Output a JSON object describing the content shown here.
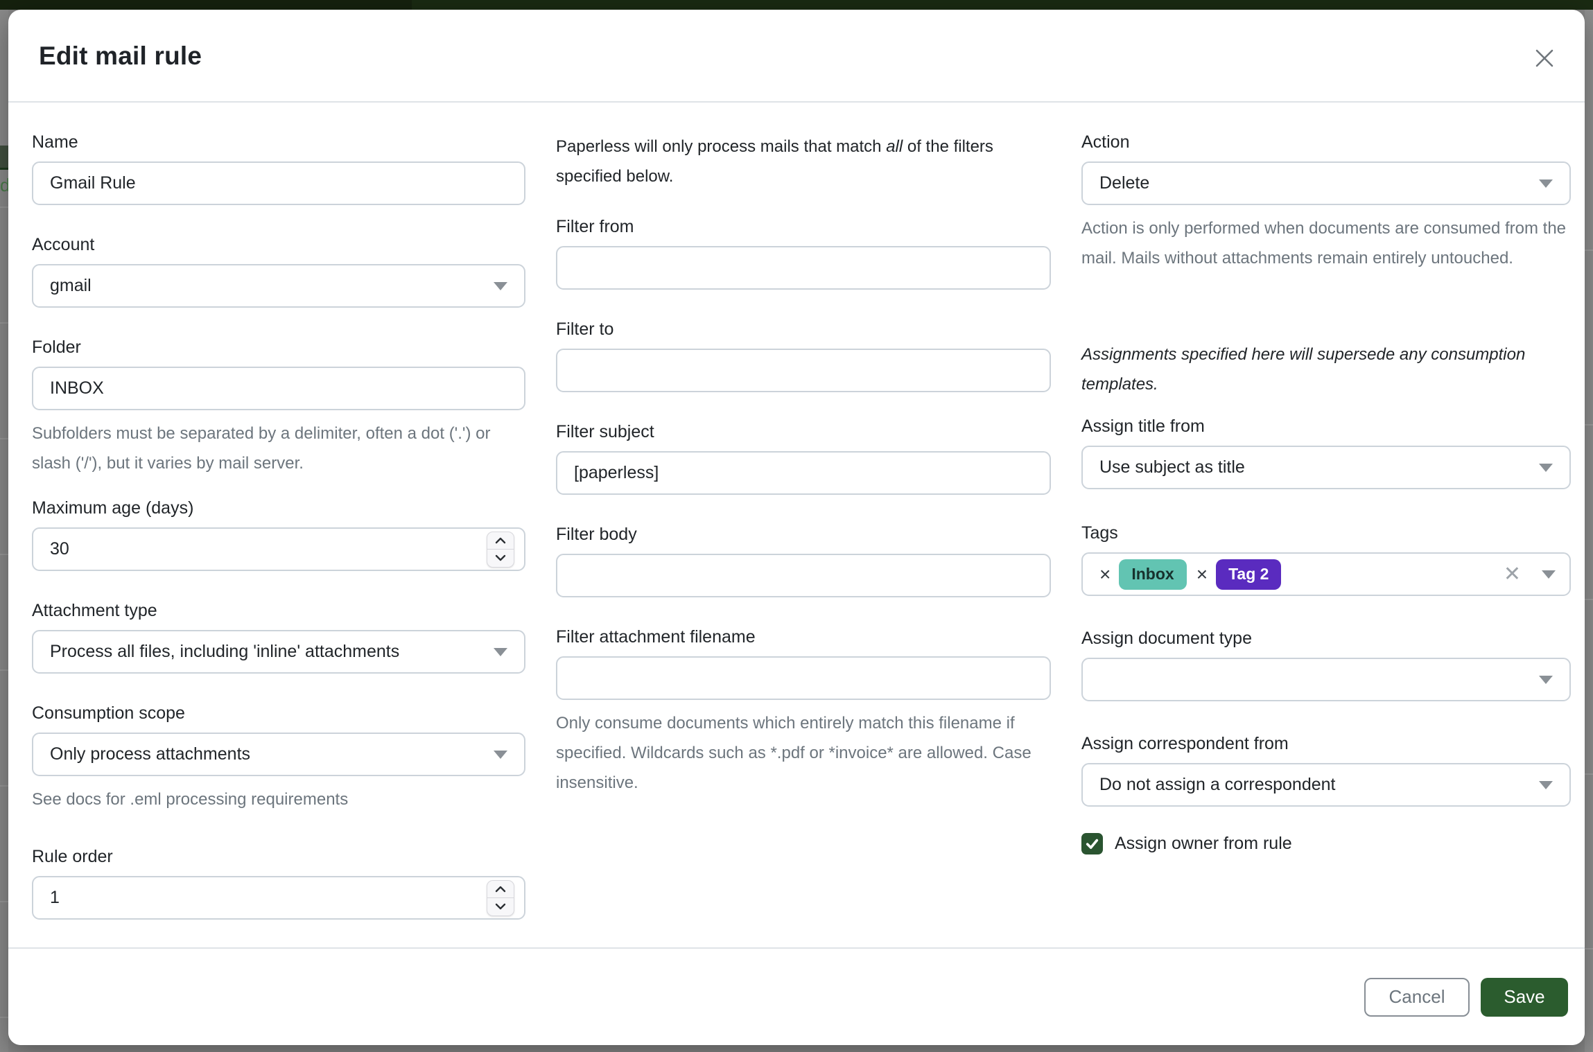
{
  "modal": {
    "title": "Edit mail rule"
  },
  "left": {
    "name": {
      "label": "Name",
      "value": "Gmail Rule"
    },
    "account": {
      "label": "Account",
      "value": "gmail"
    },
    "folder": {
      "label": "Folder",
      "value": "INBOX",
      "help": "Subfolders must be separated by a delimiter, often a dot ('.') or slash ('/'), but it varies by mail server."
    },
    "max_age": {
      "label": "Maximum age (days)",
      "value": "30"
    },
    "attachment_type": {
      "label": "Attachment type",
      "value": "Process all files, including 'inline' attachments"
    },
    "consumption_scope": {
      "label": "Consumption scope",
      "value": "Only process attachments",
      "help": "See docs for .eml processing requirements"
    },
    "rule_order": {
      "label": "Rule order",
      "value": "1"
    }
  },
  "middle": {
    "intro": {
      "before": "Paperless will only process mails that match ",
      "emphasis": "all",
      "after": " of the filters specified below."
    },
    "filter_from": {
      "label": "Filter from",
      "value": ""
    },
    "filter_to": {
      "label": "Filter to",
      "value": ""
    },
    "filter_subject": {
      "label": "Filter subject",
      "value": "[paperless]"
    },
    "filter_body": {
      "label": "Filter body",
      "value": ""
    },
    "filter_attachment_filename": {
      "label": "Filter attachment filename",
      "value": "",
      "help": "Only consume documents which entirely match this filename if specified. Wildcards such as *.pdf or *invoice* are allowed. Case insensitive."
    }
  },
  "right": {
    "action": {
      "label": "Action",
      "value": "Delete",
      "help": "Action is only performed when documents are consumed from the mail. Mails without attachments remain entirely untouched."
    },
    "assignments_note": "Assignments specified here will supersede any consumption templates.",
    "assign_title_from": {
      "label": "Assign title from",
      "value": "Use subject as title"
    },
    "tags": {
      "label": "Tags",
      "items": [
        {
          "name": "Inbox",
          "color": "#62c4b2",
          "text_color": "#17322d"
        },
        {
          "name": "Tag 2",
          "color": "#5a2bbf",
          "text_color": "#ffffff"
        }
      ],
      "remove_icon": "×",
      "clear_icon": "✕"
    },
    "assign_document_type": {
      "label": "Assign document type",
      "value": ""
    },
    "assign_correspondent_from": {
      "label": "Assign correspondent from",
      "value": "Do not assign a correspondent"
    },
    "assign_owner": {
      "label": "Assign owner from rule",
      "checked": true
    }
  },
  "footer": {
    "cancel_label": "Cancel",
    "save_label": "Save"
  },
  "colors": {
    "accent_green": "#2b5c2e",
    "checkbox_green": "#2a5430",
    "tag_teal": "#62c4b2",
    "tag_purple": "#5a2bbf"
  }
}
